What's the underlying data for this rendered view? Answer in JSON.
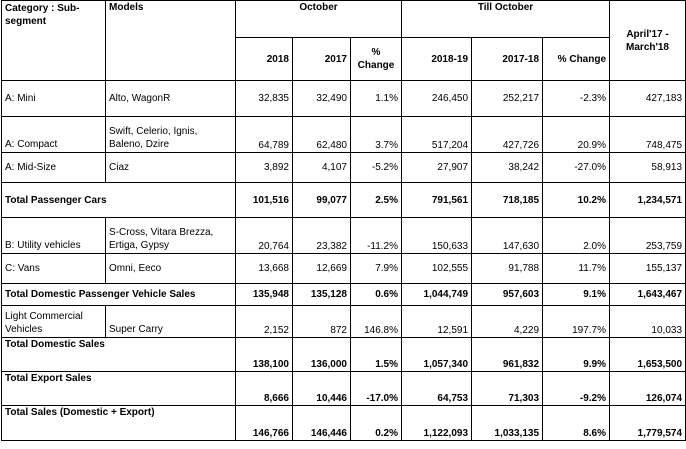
{
  "headers": {
    "category": "Category : Sub-segment",
    "models": "Models",
    "october": "October",
    "till_october": "Till October",
    "annual": "April'17 - March'18",
    "oct_2018": "2018",
    "oct_2017": "2017",
    "oct_change": "% Change",
    "till_2018_19": "2018-19",
    "till_2017_18": "2017-18",
    "till_change": "% Change"
  },
  "rows": [
    {
      "category": "A: Mini",
      "models": "Alto, WagonR",
      "oct_2018": "32,835",
      "oct_2017": "32,490",
      "oct_change": "1.1%",
      "till_2018_19": "246,450",
      "till_2017_18": "252,217",
      "till_change": "-2.3%",
      "annual": "427,183"
    },
    {
      "category": "A: Compact",
      "models": "Swift, Celerio, Ignis, Baleno, Dzire",
      "oct_2018": "64,789",
      "oct_2017": "62,480",
      "oct_change": "3.7%",
      "till_2018_19": "517,204",
      "till_2017_18": "427,726",
      "till_change": "20.9%",
      "annual": "748,475"
    },
    {
      "category": "A: Mid-Size",
      "models": "Ciaz",
      "oct_2018": "3,892",
      "oct_2017": "4,107",
      "oct_change": "-5.2%",
      "till_2018_19": "27,907",
      "till_2017_18": "38,242",
      "till_change": "-27.0%",
      "annual": "58,913"
    },
    {
      "category": "Total Passenger Cars",
      "models": "",
      "oct_2018": "101,516",
      "oct_2017": "99,077",
      "oct_change": "2.5%",
      "till_2018_19": "791,561",
      "till_2017_18": "718,185",
      "till_change": "10.2%",
      "annual": "1,234,571"
    },
    {
      "category": "B: Utility vehicles",
      "models": "S-Cross, Vitara Brezza, Ertiga, Gypsy",
      "oct_2018": "20,764",
      "oct_2017": "23,382",
      "oct_change": "-11.2%",
      "till_2018_19": "150,633",
      "till_2017_18": "147,630",
      "till_change": "2.0%",
      "annual": "253,759"
    },
    {
      "category": "C: Vans",
      "models": "Omni, Eeco",
      "oct_2018": "13,668",
      "oct_2017": "12,669",
      "oct_change": "7.9%",
      "till_2018_19": "102,555",
      "till_2017_18": "91,788",
      "till_change": "11.7%",
      "annual": "155,137"
    },
    {
      "category": "Total Domestic Passenger Vehicle Sales",
      "models": "",
      "oct_2018": "135,948",
      "oct_2017": "135,128",
      "oct_change": "0.6%",
      "till_2018_19": "1,044,749",
      "till_2017_18": "957,603",
      "till_change": "9.1%",
      "annual": "1,643,467"
    },
    {
      "category": "Light Commercial Vehicles",
      "models": "Super Carry",
      "oct_2018": "2,152",
      "oct_2017": "872",
      "oct_change": "146.8%",
      "till_2018_19": "12,591",
      "till_2017_18": "4,229",
      "till_change": "197.7%",
      "annual": "10,033"
    },
    {
      "category": "Total Domestic Sales",
      "models": "",
      "oct_2018": "138,100",
      "oct_2017": "136,000",
      "oct_change": "1.5%",
      "till_2018_19": "1,057,340",
      "till_2017_18": "961,832",
      "till_change": "9.9%",
      "annual": "1,653,500"
    },
    {
      "category": "Total Export Sales",
      "models": "",
      "oct_2018": "8,666",
      "oct_2017": "10,446",
      "oct_change": "-17.0%",
      "till_2018_19": "64,753",
      "till_2017_18": "71,303",
      "till_change": "-9.2%",
      "annual": "126,074"
    },
    {
      "category": "Total Sales (Domestic + Export)",
      "models": "",
      "oct_2018": "146,766",
      "oct_2017": "146,446",
      "oct_change": "0.2%",
      "till_2018_19": "1,122,093",
      "till_2017_18": "1,033,135",
      "till_change": "8.6%",
      "annual": "1,779,574"
    }
  ]
}
